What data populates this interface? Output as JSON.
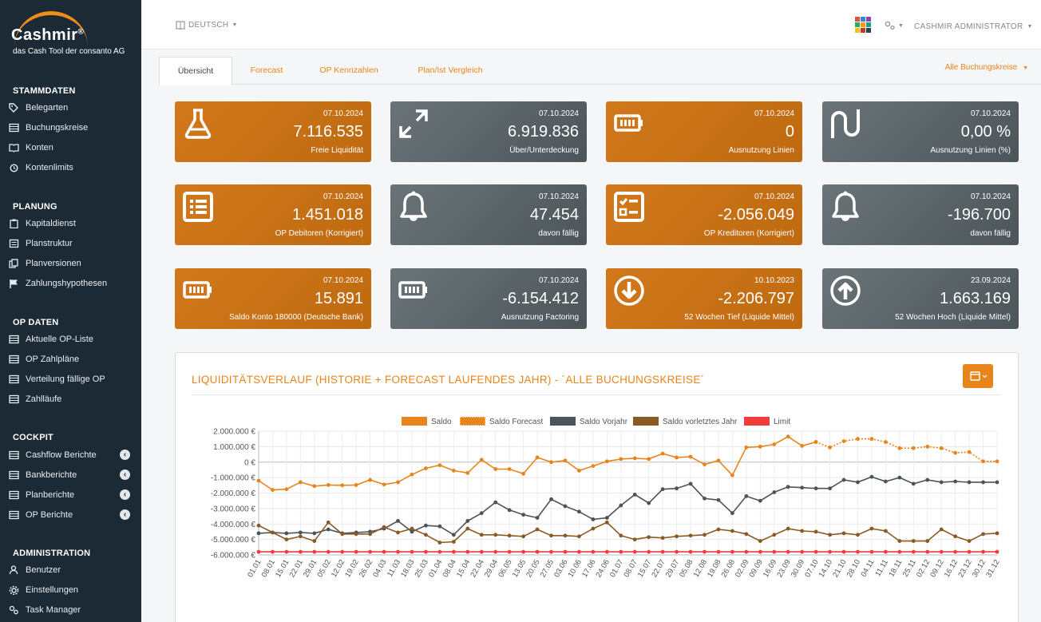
{
  "brand": {
    "name": "Cashmir",
    "reg": "®",
    "tagline": "das Cash Tool der consanto AG"
  },
  "sidebar": {
    "sections": [
      {
        "title": "STAMMDATEN",
        "items": [
          {
            "label": "Belegarten",
            "icon": "tag-icon"
          },
          {
            "label": "Buchungskreise",
            "icon": "table-icon"
          },
          {
            "label": "Konten",
            "icon": "book-icon"
          },
          {
            "label": "Kontenlimits",
            "icon": "alarm-icon"
          }
        ]
      },
      {
        "title": "PLANUNG",
        "items": [
          {
            "label": "Kapitaldienst",
            "icon": "clipboard-icon"
          },
          {
            "label": "Planstruktur",
            "icon": "list-icon"
          },
          {
            "label": "Planversionen",
            "icon": "copy-icon"
          },
          {
            "label": "Zahlungshypothesen",
            "icon": "flag-icon"
          }
        ]
      },
      {
        "title": "OP DATEN",
        "items": [
          {
            "label": "Aktuelle OP-Liste",
            "icon": "table-icon"
          },
          {
            "label": "OP Zahlpläne",
            "icon": "table-icon"
          },
          {
            "label": "Verteilung fällige OP",
            "icon": "table-icon"
          },
          {
            "label": "Zahlläufe",
            "icon": "table-icon"
          }
        ]
      },
      {
        "title": "COCKPIT",
        "items": [
          {
            "label": "Cashflow Berichte",
            "icon": "table-icon"
          },
          {
            "label": "Bankberichte",
            "icon": "table-icon"
          },
          {
            "label": "Planberichte",
            "icon": "table-icon"
          },
          {
            "label": "OP Berichte",
            "icon": "table-icon"
          }
        ]
      },
      {
        "title": "ADMINISTRATION",
        "items": [
          {
            "label": "Benutzer",
            "icon": "users-icon"
          },
          {
            "label": "Einstellungen",
            "icon": "gear-icon"
          },
          {
            "label": "Task Manager",
            "icon": "cogs-icon"
          }
        ]
      }
    ]
  },
  "header": {
    "language": "DEUTSCH",
    "user": "CASHMIR ADMINISTRATOR"
  },
  "tabs": [
    "Übersicht",
    "Forecast",
    "OP Kennzahlen",
    "Plan/Ist Vergleich"
  ],
  "company_filter": "Alle Buchungskreise",
  "cards": [
    {
      "date": "07.10.2024",
      "value": "7.116.535",
      "label": "Freie Liquidität",
      "color": "orange",
      "icon": "flask-icon"
    },
    {
      "date": "07.10.2024",
      "value": "6.919.836",
      "label": "Über/Unterdeckung",
      "color": "gray",
      "icon": "expand-icon"
    },
    {
      "date": "07.10.2024",
      "value": "0",
      "label": "Ausnutzung Linien",
      "color": "orange",
      "icon": "battery-icon"
    },
    {
      "date": "07.10.2024",
      "value": "0,00 %",
      "label": "Ausnutzung Linien (%)",
      "color": "gray",
      "icon": "magnet-icon"
    },
    {
      "date": "07.10.2024",
      "value": "1.451.018",
      "label": "OP Debitoren (Korrigiert)",
      "color": "orange",
      "icon": "list-alt-icon"
    },
    {
      "date": "07.10.2024",
      "value": "47.454",
      "label": "davon fällig",
      "color": "gray",
      "icon": "bell-icon"
    },
    {
      "date": "07.10.2024",
      "value": "-2.056.049",
      "label": "OP Kreditoren (Korrigiert)",
      "color": "orange",
      "icon": "checklist-icon"
    },
    {
      "date": "07.10.2024",
      "value": "-196.700",
      "label": "davon fällig",
      "color": "gray",
      "icon": "bell-icon"
    },
    {
      "date": "07.10.2024",
      "value": "15.891",
      "label": "Saldo Konto 180000 (Deutsche Bank)",
      "color": "orange",
      "icon": "battery-icon"
    },
    {
      "date": "07.10.2024",
      "value": "-6.154.412",
      "label": "Ausnutzung Factoring",
      "color": "gray",
      "icon": "battery-icon"
    },
    {
      "date": "10.10.2023",
      "value": "-2.206.797",
      "label": "52 Wochen Tief (Liquide Mittel)",
      "color": "orange",
      "icon": "arrow-down-circle-icon"
    },
    {
      "date": "23.09.2024",
      "value": "1.663.169",
      "label": "52 Wochen Hoch (Liquide Mittel)",
      "color": "gray",
      "icon": "arrow-up-circle-icon"
    }
  ],
  "chart": {
    "title": "LIQUIDITÄTSVERLAUF (HISTORIE + FORECAST LAUFENDES JAHR) - ´ALLE BUCHUNGSKREISE´"
  },
  "chart_data": {
    "type": "line",
    "title": "LIQUIDITÄTSVERLAUF (HISTORIE + FORECAST LAUFENDES JAHR) - ´ALLE BUCHUNGSKREISE´",
    "legend_position": "top",
    "grid": true,
    "ylim": [
      -6000000,
      2000000
    ],
    "yticks": [
      "2.000.000 €",
      "1.000.000 €",
      "0 €",
      "-1.000.000 €",
      "-2.000.000 €",
      "-3.000.000 €",
      "-4.000.000 €",
      "-5.000.000 €",
      "-6.000.000 €"
    ],
    "categories": [
      "01.01",
      "08.01",
      "15.01",
      "22.01",
      "29.01",
      "05.02",
      "12.02",
      "19.02",
      "26.02",
      "04.03",
      "11.03",
      "18.03",
      "25.03",
      "01.04",
      "08.04",
      "15.04",
      "22.04",
      "29.04",
      "06.05",
      "13.05",
      "20.05",
      "27.05",
      "03.06",
      "10.06",
      "17.06",
      "24.06",
      "01.07",
      "08.07",
      "15.07",
      "22.07",
      "29.07",
      "05.08",
      "12.08",
      "19.08",
      "26.08",
      "02.09",
      "09.09",
      "16.09",
      "23.09",
      "30.09",
      "07.10",
      "14.10",
      "21.10",
      "28.10",
      "04.11",
      "11.11",
      "18.11",
      "25.11",
      "02.12",
      "09.12",
      "16.12",
      "23.12",
      "30.12",
      "31.12"
    ],
    "series": [
      {
        "name": "Saldo",
        "color": "#e8841c",
        "style": "solid",
        "values": [
          -1200000,
          -1800000,
          -1750000,
          -1300000,
          -1550000,
          -1480000,
          -1500000,
          -1480000,
          -1150000,
          -1450000,
          -1300000,
          -800000,
          -400000,
          -200000,
          -550000,
          -700000,
          150000,
          -450000,
          -450000,
          -750000,
          300000,
          0,
          100000,
          -550000,
          -250000,
          50000,
          200000,
          250000,
          200000,
          550000,
          300000,
          350000,
          -150000,
          100000,
          -850000,
          950000,
          1000000,
          1150000,
          1650000,
          1050000,
          1300000,
          null,
          null,
          null,
          null,
          null,
          null,
          null,
          null,
          null,
          null,
          null,
          null,
          null
        ]
      },
      {
        "name": "Saldo Forecast",
        "color": "#e8841c",
        "style": "dotted",
        "values": [
          null,
          null,
          null,
          null,
          null,
          null,
          null,
          null,
          null,
          null,
          null,
          null,
          null,
          null,
          null,
          null,
          null,
          null,
          null,
          null,
          null,
          null,
          null,
          null,
          null,
          null,
          null,
          null,
          null,
          null,
          null,
          null,
          null,
          null,
          null,
          null,
          null,
          null,
          null,
          null,
          1300000,
          950000,
          1350000,
          1500000,
          1500000,
          1300000,
          900000,
          900000,
          1000000,
          900000,
          600000,
          650000,
          50000,
          50000
        ]
      },
      {
        "name": "Saldo Vorjahr",
        "color": "#4b545a",
        "style": "solid",
        "values": [
          -4600000,
          -4550000,
          -4600000,
          -4550000,
          -4600000,
          -4350000,
          -4600000,
          -4550000,
          -4500000,
          -4300000,
          -3800000,
          -4500000,
          -4100000,
          -4150000,
          -4700000,
          -3800000,
          -3300000,
          -2600000,
          -3100000,
          -3400000,
          -3600000,
          -2400000,
          -2850000,
          -3200000,
          -3700000,
          -3600000,
          -2800000,
          -2100000,
          -2650000,
          -1750000,
          -1700000,
          -1400000,
          -2350000,
          -2450000,
          -3300000,
          -2200000,
          -2500000,
          -1950000,
          -1600000,
          -1650000,
          -1700000,
          -1700000,
          -1150000,
          -1300000,
          -950000,
          -1250000,
          -1000000,
          -1400000,
          -1150000,
          -1300000,
          -1250000,
          -1300000,
          -1300000,
          -1300000
        ]
      },
      {
        "name": "Saldo vorletztes Jahr",
        "color": "#8a5a24",
        "style": "solid",
        "values": [
          -4100000,
          -4550000,
          -5000000,
          -4800000,
          -5100000,
          -3900000,
          -4650000,
          -4650000,
          -4650000,
          -4200000,
          -4550000,
          -4300000,
          -4700000,
          -5200000,
          -5150000,
          -4300000,
          -4700000,
          -4700000,
          -4750000,
          -4800000,
          -4350000,
          -4750000,
          -4750000,
          -4800000,
          -4300000,
          -3900000,
          -4750000,
          -5000000,
          -4850000,
          -4900000,
          -4800000,
          -4750000,
          -4700000,
          -4350000,
          -4450000,
          -4650000,
          -5100000,
          -4700000,
          -4300000,
          -4450000,
          -4500000,
          -4700000,
          -4600000,
          -4700000,
          -4300000,
          -4450000,
          -5100000,
          -5100000,
          -5100000,
          -4350000,
          -4800000,
          -5100000,
          -4650000,
          -4600000
        ]
      },
      {
        "name": "Limit",
        "color": "#f03c3c",
        "style": "solid",
        "values": [
          -5800000,
          -5800000,
          -5800000,
          -5800000,
          -5800000,
          -5800000,
          -5800000,
          -5800000,
          -5800000,
          -5800000,
          -5800000,
          -5800000,
          -5800000,
          -5800000,
          -5800000,
          -5800000,
          -5800000,
          -5800000,
          -5800000,
          -5800000,
          -5800000,
          -5800000,
          -5800000,
          -5800000,
          -5800000,
          -5800000,
          -5800000,
          -5800000,
          -5800000,
          -5800000,
          -5800000,
          -5800000,
          -5800000,
          -5800000,
          -5800000,
          -5800000,
          -5800000,
          -5800000,
          -5800000,
          -5800000,
          -5800000,
          -5800000,
          -5800000,
          -5800000,
          -5800000,
          -5800000,
          -5800000,
          -5800000,
          -5800000,
          -5800000,
          -5800000,
          -5800000,
          -5800000,
          -5800000
        ]
      }
    ]
  }
}
